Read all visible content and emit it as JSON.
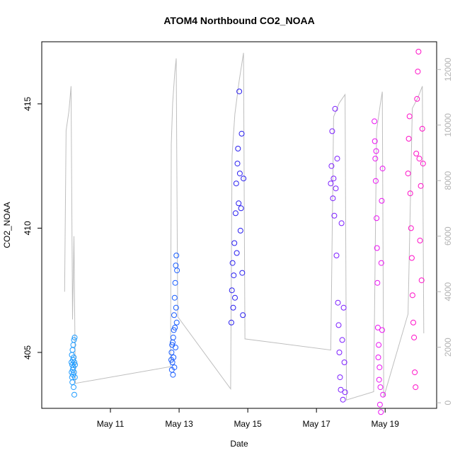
{
  "chart_data": {
    "type": "scatter",
    "title": "ATOM4 Northbound CO2_NOAA",
    "xlabel": "Date",
    "ylabel": "CO2_NOAA",
    "xlim": [
      "2018-05-09 00:00",
      "2018-05-20 12:00"
    ],
    "ylim": [
      402.75,
      417.5
    ],
    "y2lim": [
      -200,
      13000
    ],
    "x_ticks": [
      {
        "date": "2018-05-11",
        "label": "May 11"
      },
      {
        "date": "2018-05-13",
        "label": "May 13"
      },
      {
        "date": "2018-05-15",
        "label": "May 15"
      },
      {
        "date": "2018-05-17",
        "label": "May 17"
      },
      {
        "date": "2018-05-19",
        "label": "May 19"
      }
    ],
    "y_ticks": [
      405,
      410,
      415
    ],
    "y2_ticks": [
      0,
      2000,
      4000,
      6000,
      8000,
      10000,
      12000
    ],
    "grid": false,
    "altitude_line_color": "#bebebe",
    "series": [
      {
        "color": "#1e9bff",
        "start": "2018-05-09 20:45",
        "end": "2018-05-09 23:15",
        "points": [
          [
            0.0,
            404.6
          ],
          [
            0.05,
            404.2
          ],
          [
            0.1,
            404.9
          ],
          [
            0.15,
            404.0
          ],
          [
            0.2,
            404.5
          ],
          [
            0.25,
            403.8
          ],
          [
            0.3,
            405.1
          ],
          [
            0.35,
            404.3
          ],
          [
            0.4,
            404.7
          ],
          [
            0.45,
            404.1
          ],
          [
            0.5,
            405.3
          ],
          [
            0.55,
            404.4
          ],
          [
            0.6,
            403.6
          ],
          [
            0.65,
            404.8
          ],
          [
            0.7,
            405.5
          ],
          [
            0.75,
            404.2
          ],
          [
            0.8,
            403.3
          ],
          [
            0.85,
            404.6
          ],
          [
            0.9,
            405.6
          ],
          [
            0.95,
            404.0
          ],
          [
            1.0,
            404.5
          ]
        ]
      },
      {
        "color": "#1a5eff",
        "start": "2018-05-12 18:30",
        "end": "2018-05-12 22:30",
        "points": [
          [
            0.0,
            404.7
          ],
          [
            0.05,
            405.0
          ],
          [
            0.1,
            404.3
          ],
          [
            0.15,
            405.3
          ],
          [
            0.2,
            404.6
          ],
          [
            0.25,
            405.4
          ],
          [
            0.3,
            404.1
          ],
          [
            0.35,
            405.6
          ],
          [
            0.4,
            404.8
          ],
          [
            0.45,
            405.9
          ],
          [
            0.5,
            406.5
          ],
          [
            0.55,
            404.4
          ],
          [
            0.6,
            407.2
          ],
          [
            0.65,
            406.0
          ],
          [
            0.7,
            407.8
          ],
          [
            0.75,
            405.2
          ],
          [
            0.8,
            408.5
          ],
          [
            0.85,
            406.8
          ],
          [
            0.9,
            408.9
          ],
          [
            0.95,
            406.2
          ],
          [
            1.0,
            408.3
          ]
        ]
      },
      {
        "color": "#2a1ff0",
        "start": "2018-05-14 12:30",
        "end": "2018-05-14 21:00",
        "points": [
          [
            0.0,
            406.2
          ],
          [
            0.05,
            407.5
          ],
          [
            0.1,
            408.6
          ],
          [
            0.15,
            406.8
          ],
          [
            0.2,
            408.1
          ],
          [
            0.25,
            409.4
          ],
          [
            0.3,
            407.2
          ],
          [
            0.35,
            410.6
          ],
          [
            0.4,
            411.8
          ],
          [
            0.45,
            409.0
          ],
          [
            0.5,
            412.6
          ],
          [
            0.55,
            413.2
          ],
          [
            0.6,
            411.0
          ],
          [
            0.65,
            415.5
          ],
          [
            0.7,
            412.2
          ],
          [
            0.75,
            409.9
          ],
          [
            0.8,
            410.8
          ],
          [
            0.85,
            413.8
          ],
          [
            0.9,
            408.2
          ],
          [
            0.95,
            406.5
          ],
          [
            1.0,
            412.0
          ]
        ]
      },
      {
        "color": "#7d1fff",
        "start": "2018-05-17 10:00",
        "end": "2018-05-17 20:00",
        "points": [
          [
            0.0,
            411.8
          ],
          [
            0.05,
            412.5
          ],
          [
            0.1,
            413.9
          ],
          [
            0.15,
            411.2
          ],
          [
            0.2,
            412.0
          ],
          [
            0.25,
            410.5
          ],
          [
            0.3,
            414.8
          ],
          [
            0.35,
            411.6
          ],
          [
            0.4,
            408.9
          ],
          [
            0.45,
            412.8
          ],
          [
            0.5,
            407.0
          ],
          [
            0.55,
            406.1
          ],
          [
            0.6,
            405.0
          ],
          [
            0.65,
            404.0
          ],
          [
            0.7,
            403.5
          ],
          [
            0.75,
            410.2
          ],
          [
            0.8,
            405.5
          ],
          [
            0.85,
            403.1
          ],
          [
            0.9,
            406.8
          ],
          [
            0.95,
            404.6
          ],
          [
            1.0,
            403.4
          ]
        ]
      },
      {
        "color": "#ea13f2",
        "start": "2018-05-18 16:30",
        "end": "2018-05-18 22:30",
        "points": [
          [
            0.0,
            414.3
          ],
          [
            0.05,
            413.5
          ],
          [
            0.1,
            412.8
          ],
          [
            0.15,
            411.9
          ],
          [
            0.2,
            413.1
          ],
          [
            0.25,
            410.4
          ],
          [
            0.3,
            409.2
          ],
          [
            0.35,
            407.8
          ],
          [
            0.4,
            406.0
          ],
          [
            0.45,
            404.8
          ],
          [
            0.5,
            405.3
          ],
          [
            0.55,
            403.9
          ],
          [
            0.6,
            404.4
          ],
          [
            0.65,
            402.9
          ],
          [
            0.7,
            403.6
          ],
          [
            0.75,
            402.6
          ],
          [
            0.8,
            408.6
          ],
          [
            0.85,
            411.1
          ],
          [
            0.9,
            405.9
          ],
          [
            0.95,
            412.4
          ],
          [
            1.0,
            403.3
          ]
        ]
      },
      {
        "color": "#ff10c8",
        "start": "2018-05-19 16:00",
        "end": "2018-05-20 02:30",
        "points": [
          [
            0.0,
            412.2
          ],
          [
            0.05,
            413.6
          ],
          [
            0.1,
            414.5
          ],
          [
            0.15,
            411.4
          ],
          [
            0.2,
            410.0
          ],
          [
            0.25,
            408.8
          ],
          [
            0.3,
            407.3
          ],
          [
            0.35,
            406.2
          ],
          [
            0.4,
            405.6
          ],
          [
            0.45,
            404.2
          ],
          [
            0.5,
            403.6
          ],
          [
            0.55,
            413.0
          ],
          [
            0.6,
            415.2
          ],
          [
            0.65,
            416.3
          ],
          [
            0.7,
            417.1
          ],
          [
            0.75,
            412.8
          ],
          [
            0.8,
            409.5
          ],
          [
            0.85,
            411.7
          ],
          [
            0.9,
            407.9
          ],
          [
            0.95,
            414.0
          ],
          [
            1.0,
            412.6
          ]
        ]
      }
    ],
    "altitude_trace": [
      [
        "2018-05-09 16:00",
        4000
      ],
      [
        "2018-05-09 17:00",
        9800
      ],
      [
        "2018-05-09 19:00",
        10500
      ],
      [
        "2018-05-09 20:30",
        11400
      ],
      [
        "2018-05-09 21:30",
        3000
      ],
      [
        "2018-05-09 22:30",
        6000
      ],
      [
        "2018-05-09 23:30",
        700
      ],
      [
        "2018-05-12 18:00",
        1300
      ],
      [
        "2018-05-12 18:30",
        9300
      ],
      [
        "2018-05-12 19:30",
        10800
      ],
      [
        "2018-05-12 21:00",
        11900
      ],
      [
        "2018-05-12 22:00",
        12400
      ],
      [
        "2018-05-12 23:00",
        3100
      ],
      [
        "2018-05-14 12:00",
        500
      ],
      [
        "2018-05-14 13:00",
        8900
      ],
      [
        "2018-05-14 15:00",
        10400
      ],
      [
        "2018-05-14 18:00",
        11600
      ],
      [
        "2018-05-14 21:00",
        12600
      ],
      [
        "2018-05-14 22:00",
        2300
      ],
      [
        "2018-05-17 10:00",
        1900
      ],
      [
        "2018-05-17 12:00",
        10300
      ],
      [
        "2018-05-17 16:00",
        10800
      ],
      [
        "2018-05-17 20:00",
        11100
      ],
      [
        "2018-05-17 21:00",
        100
      ],
      [
        "2018-05-18 16:00",
        400
      ],
      [
        "2018-05-18 18:00",
        9800
      ],
      [
        "2018-05-18 20:30",
        10700
      ],
      [
        "2018-05-18 22:00",
        11200
      ],
      [
        "2018-05-18 23:00",
        200
      ],
      [
        "2018-05-19 16:00",
        3200
      ],
      [
        "2018-05-19 19:00",
        10600
      ],
      [
        "2018-05-19 23:00",
        11000
      ],
      [
        "2018-05-20 02:00",
        11400
      ],
      [
        "2018-05-20 03:00",
        2500
      ]
    ]
  }
}
